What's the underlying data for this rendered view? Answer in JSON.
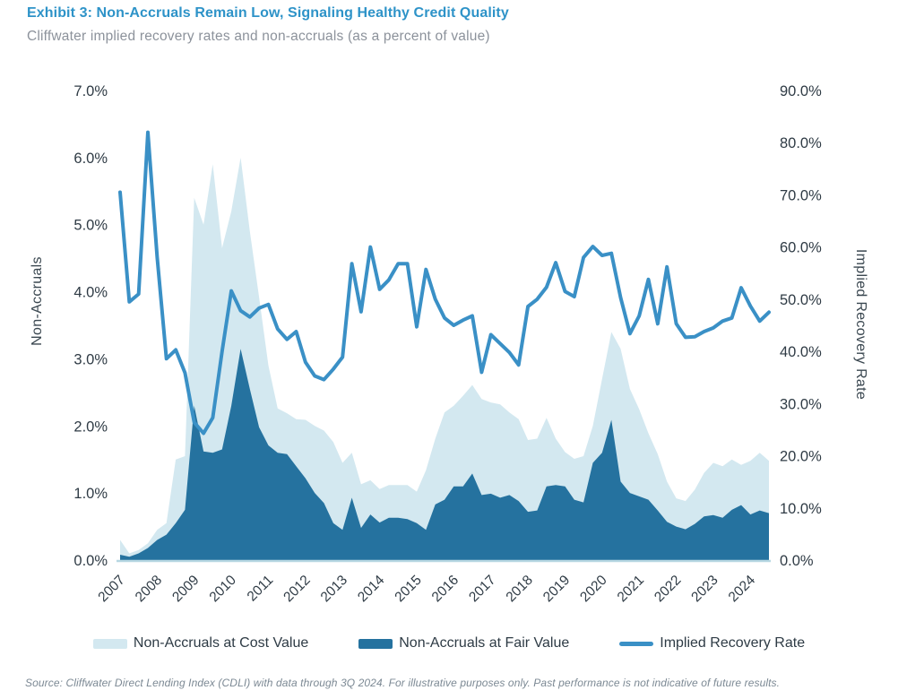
{
  "header": {
    "title": "Exhibit 3: Non-Accruals Remain Low, Signaling Healthy Credit Quality",
    "subtitle": "Cliffwater implied recovery rates and non-accruals (as a percent of value)"
  },
  "footer": {
    "source": "Source: Cliffwater Direct Lending Index (CDLI) with data through 3Q 2024. For illustrative purposes only. Past performance is not indicative of future results."
  },
  "colors": {
    "title_blue": "#2E93C8",
    "cost_area": "#D3E8F0",
    "fair_area": "#25729F",
    "recovery_line": "#3A90C6",
    "axis_line": "#B7D7E2",
    "tick_text": "#2F3B45"
  },
  "chart_data": {
    "type": "area",
    "subtype": "combo-area-line",
    "frequency": "quarterly",
    "period_start": "2007 Q1",
    "period_end": "2024 Q3",
    "grid": "off",
    "legend_position": "bottom",
    "x": {
      "labels": [
        "2007",
        "2008",
        "2009",
        "2010",
        "2011",
        "2012",
        "2013",
        "2014",
        "2015",
        "2016",
        "2017",
        "2018",
        "2019",
        "2020",
        "2021",
        "2022",
        "2023",
        "2024"
      ]
    },
    "left_axis": {
      "title": "Non-Accruals",
      "min": 0,
      "max": 7,
      "ticks": [
        "7.0%",
        "6.0%",
        "5.0%",
        "4.0%",
        "3.0%",
        "2.0%",
        "1.0%",
        "0.0%"
      ]
    },
    "right_axis": {
      "title": "Implied Recovery Rate",
      "min": 0,
      "max": 90,
      "ticks": [
        "90.0%",
        "80.0%",
        "70.0%",
        "60.0%",
        "50.0%",
        "40.0%",
        "30.0%",
        "20.0%",
        "10.0%",
        "0.0%"
      ]
    },
    "series": [
      {
        "name": "Non-Accruals at Cost Value",
        "type": "area",
        "axis": "left",
        "color": "#D3E8F0",
        "values": [
          0.3,
          0.1,
          0.15,
          0.25,
          0.45,
          0.55,
          1.5,
          1.55,
          5.4,
          5.0,
          5.9,
          4.65,
          5.2,
          6.0,
          4.9,
          3.92,
          2.9,
          2.26,
          2.19,
          2.1,
          2.09,
          2.0,
          1.93,
          1.76,
          1.45,
          1.6,
          1.13,
          1.19,
          1.06,
          1.12,
          1.12,
          1.12,
          1.02,
          1.34,
          1.81,
          2.2,
          2.3,
          2.45,
          2.61,
          2.4,
          2.35,
          2.32,
          2.2,
          2.1,
          1.79,
          1.81,
          2.12,
          1.81,
          1.61,
          1.51,
          1.55,
          2.0,
          2.7,
          3.4,
          3.15,
          2.55,
          2.25,
          1.89,
          1.58,
          1.17,
          0.92,
          0.88,
          1.05,
          1.3,
          1.45,
          1.4,
          1.5,
          1.42,
          1.48,
          1.6,
          1.48
        ]
      },
      {
        "name": "Non-Accruals at Fair Value",
        "type": "area",
        "axis": "left",
        "color": "#25729F",
        "values": [
          0.08,
          0.05,
          0.1,
          0.18,
          0.3,
          0.38,
          0.55,
          0.75,
          2.3,
          1.62,
          1.6,
          1.65,
          2.3,
          3.15,
          2.55,
          1.98,
          1.71,
          1.6,
          1.58,
          1.4,
          1.22,
          1.0,
          0.85,
          0.55,
          0.45,
          0.93,
          0.48,
          0.68,
          0.56,
          0.63,
          0.63,
          0.61,
          0.55,
          0.45,
          0.83,
          0.9,
          1.1,
          1.1,
          1.29,
          0.97,
          0.99,
          0.93,
          0.97,
          0.88,
          0.72,
          0.74,
          1.1,
          1.12,
          1.1,
          0.9,
          0.86,
          1.45,
          1.6,
          2.09,
          1.17,
          1.0,
          0.95,
          0.9,
          0.74,
          0.57,
          0.5,
          0.46,
          0.54,
          0.65,
          0.67,
          0.63,
          0.75,
          0.82,
          0.68,
          0.74,
          0.7
        ]
      },
      {
        "name": "Implied Recovery Rate",
        "type": "line",
        "axis": "right",
        "color": "#3A90C6",
        "values": [
          70.5,
          49.5,
          51.0,
          82.0,
          58.0,
          38.6,
          40.3,
          35.9,
          26.4,
          24.3,
          27.3,
          40.0,
          51.6,
          47.8,
          46.6,
          48.3,
          49.0,
          44.3,
          42.3,
          43.8,
          37.9,
          35.3,
          34.6,
          36.6,
          38.9,
          56.8,
          47.6,
          60.0,
          51.9,
          53.7,
          56.8,
          56.8,
          44.7,
          55.7,
          50.0,
          46.4,
          45.0,
          46.0,
          46.8,
          36.0,
          43.2,
          41.5,
          39.8,
          37.4,
          48.6,
          50.0,
          52.3,
          57.0,
          51.5,
          50.5,
          58.0,
          60.1,
          58.4,
          58.8,
          50.3,
          43.4,
          46.8,
          53.8,
          45.3,
          56.2,
          45.3,
          42.7,
          42.8,
          43.8,
          44.5,
          45.8,
          46.4,
          52.2,
          48.7,
          45.8,
          47.5
        ]
      }
    ]
  }
}
